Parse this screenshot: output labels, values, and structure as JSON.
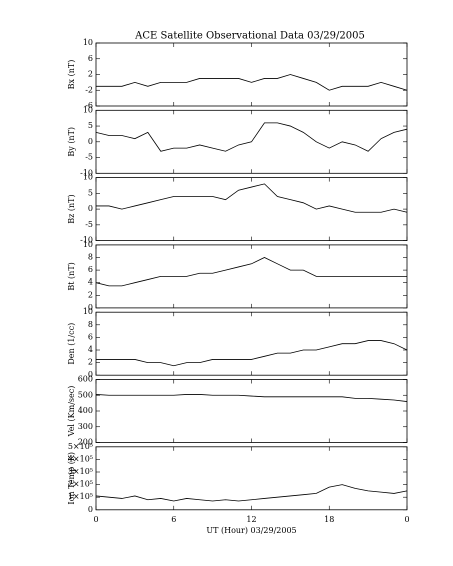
{
  "chart_data": [
    {
      "type": "line",
      "title": "ACE Satellite Observational Data  03/29/2005",
      "ylabel": "Bx (nT)",
      "color": "#000000",
      "xlim": [
        0,
        24
      ],
      "ylim": [
        -6,
        10
      ],
      "yticks": [
        -6,
        -2,
        2,
        6,
        10
      ],
      "x": [
        0,
        1,
        2,
        3,
        4,
        5,
        6,
        7,
        8,
        9,
        10,
        11,
        12,
        13,
        14,
        15,
        16,
        17,
        18,
        19,
        20,
        21,
        22,
        23,
        24
      ],
      "values": [
        -1,
        -1,
        -1,
        0,
        -1,
        0,
        0,
        0,
        1,
        1,
        1,
        1,
        0,
        1,
        1,
        2,
        1,
        0,
        -2,
        -1,
        -1,
        -1,
        0,
        -1,
        -2
      ]
    },
    {
      "type": "line",
      "ylabel": "By (nT)",
      "color": "#000000",
      "xlim": [
        0,
        24
      ],
      "ylim": [
        -10,
        10
      ],
      "yticks": [
        -10,
        -5,
        0,
        5,
        10
      ],
      "x": [
        0,
        1,
        2,
        3,
        4,
        5,
        6,
        7,
        8,
        9,
        10,
        11,
        12,
        13,
        14,
        15,
        16,
        17,
        18,
        19,
        20,
        21,
        22,
        23,
        24
      ],
      "values": [
        3,
        2,
        2,
        1,
        3,
        -3,
        -2,
        -2,
        -1,
        -2,
        -3,
        -1,
        0,
        6,
        6,
        5,
        3,
        0,
        -2,
        0,
        -1,
        -3,
        1,
        3,
        4
      ]
    },
    {
      "type": "line",
      "ylabel": "Bz (nT)",
      "color": "#000000",
      "xlim": [
        0,
        24
      ],
      "ylim": [
        -10,
        10
      ],
      "yticks": [
        -10,
        -5,
        0,
        5,
        10
      ],
      "x": [
        0,
        1,
        2,
        3,
        4,
        5,
        6,
        7,
        8,
        9,
        10,
        11,
        12,
        13,
        14,
        15,
        16,
        17,
        18,
        19,
        20,
        21,
        22,
        23,
        24
      ],
      "values": [
        1,
        1,
        0,
        1,
        2,
        3,
        4,
        4,
        4,
        4,
        3,
        6,
        7,
        8,
        4,
        3,
        2,
        0,
        1,
        0,
        -1,
        -1,
        -1,
        0,
        -1
      ]
    },
    {
      "type": "line",
      "ylabel": "Bt (nT)",
      "color": "#000000",
      "xlim": [
        0,
        24
      ],
      "ylim": [
        0,
        10
      ],
      "yticks": [
        0,
        2,
        4,
        6,
        8,
        10
      ],
      "x": [
        0,
        1,
        2,
        3,
        4,
        5,
        6,
        7,
        8,
        9,
        10,
        11,
        12,
        13,
        14,
        15,
        16,
        17,
        18,
        19,
        20,
        21,
        22,
        23,
        24
      ],
      "values": [
        4,
        3.5,
        3.5,
        4,
        4.5,
        5,
        5,
        5,
        5.5,
        5.5,
        6,
        6.5,
        7,
        8,
        7,
        6,
        6,
        5,
        5,
        5,
        5,
        5,
        5,
        5,
        5
      ]
    },
    {
      "type": "line",
      "ylabel": "Den (1/cc)",
      "color": "#000000",
      "xlim": [
        0,
        24
      ],
      "ylim": [
        0,
        10
      ],
      "yticks": [
        0,
        2,
        4,
        6,
        8,
        10
      ],
      "x": [
        0,
        1,
        2,
        3,
        4,
        5,
        6,
        7,
        8,
        9,
        10,
        11,
        12,
        13,
        14,
        15,
        16,
        17,
        18,
        19,
        20,
        21,
        22,
        23,
        24
      ],
      "values": [
        2.5,
        2.5,
        2.5,
        2.5,
        2,
        2,
        1.5,
        2,
        2,
        2.5,
        2.5,
        2.5,
        2.5,
        3,
        3.5,
        3.5,
        4,
        4,
        4.5,
        5,
        5,
        5.5,
        5.5,
        5,
        4
      ]
    },
    {
      "type": "line",
      "ylabel": "Vel (Km/sec)",
      "color": "#000000",
      "xlim": [
        0,
        24
      ],
      "ylim": [
        200,
        600
      ],
      "yticks": [
        200,
        300,
        400,
        500,
        600
      ],
      "x": [
        0,
        1,
        2,
        3,
        4,
        5,
        6,
        7,
        8,
        9,
        10,
        11,
        12,
        13,
        14,
        15,
        16,
        17,
        18,
        19,
        20,
        21,
        22,
        23,
        24
      ],
      "values": [
        505,
        500,
        500,
        500,
        500,
        500,
        500,
        505,
        505,
        500,
        500,
        500,
        495,
        490,
        490,
        490,
        490,
        490,
        490,
        490,
        480,
        480,
        475,
        470,
        460
      ]
    },
    {
      "type": "line",
      "ylabel": "Ion Temp (K)",
      "xlabel": "UT (Hour)  03/29/2005",
      "color": "#000000",
      "xlim": [
        0,
        24
      ],
      "ylim": [
        0,
        500000
      ],
      "yticks": [
        0,
        {
          "value": 100000,
          "label": "1×10⁵"
        },
        {
          "value": 200000,
          "label": "2×10⁵"
        },
        {
          "value": 300000,
          "label": "3×10⁵"
        },
        {
          "value": 400000,
          "label": "4×10⁵"
        },
        {
          "value": 500000,
          "label": "5×10⁵"
        }
      ],
      "xticks": [
        0,
        6,
        12,
        18,
        {
          "value": 24,
          "label": "0"
        }
      ],
      "x": [
        0,
        1,
        2,
        3,
        4,
        5,
        6,
        7,
        8,
        9,
        10,
        11,
        12,
        13,
        14,
        15,
        16,
        17,
        18,
        19,
        20,
        21,
        22,
        23,
        24
      ],
      "values": [
        110000,
        100000,
        90000,
        110000,
        80000,
        90000,
        70000,
        90000,
        80000,
        70000,
        80000,
        70000,
        80000,
        90000,
        100000,
        110000,
        120000,
        130000,
        180000,
        200000,
        170000,
        150000,
        140000,
        130000,
        150000
      ]
    }
  ]
}
